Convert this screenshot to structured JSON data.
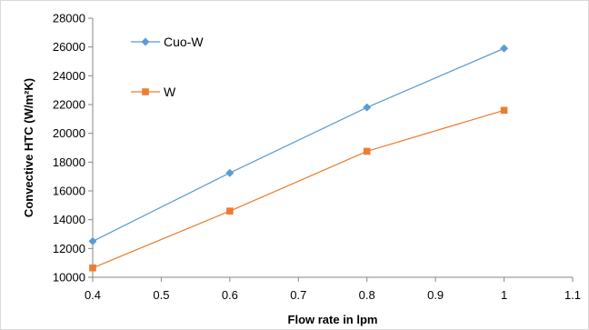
{
  "chart_data": {
    "type": "line",
    "xlabel": "Flow rate in lpm",
    "ylabel": "Convective HTC (W/m²K)",
    "xlim": [
      0.4,
      1.1
    ],
    "ylim": [
      10000,
      28000
    ],
    "x_ticks": [
      0.4,
      0.5,
      0.6,
      0.7,
      0.8,
      0.9,
      1,
      1.1
    ],
    "x_tick_labels": [
      "0.4",
      "0.5",
      "0.6",
      "0.7",
      "0.8",
      "0.9",
      "1",
      "1.1"
    ],
    "y_ticks": [
      10000,
      12000,
      14000,
      16000,
      18000,
      20000,
      22000,
      24000,
      26000,
      28000
    ],
    "y_tick_labels": [
      "10000",
      "12000",
      "14000",
      "16000",
      "18000",
      "20000",
      "22000",
      "24000",
      "26000",
      "28000"
    ],
    "grid": false,
    "legend": "upper-left inside plot",
    "x": [
      0.4,
      0.6,
      0.8,
      1.0
    ],
    "series": [
      {
        "name": "Cuo-W",
        "values": [
          12500,
          17250,
          21800,
          25900
        ],
        "color": "#5b9bd5",
        "marker": "diamond"
      },
      {
        "name": "W",
        "values": [
          10650,
          14600,
          18750,
          21600
        ],
        "color": "#ed7d31",
        "marker": "square"
      }
    ]
  }
}
